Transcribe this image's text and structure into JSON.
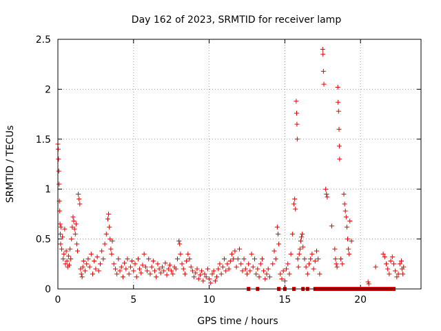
{
  "chart_data": {
    "type": "scatter",
    "title": "Day 162 of 2023, SRMTID for receiver lamp",
    "xlabel": "GPS time / hours",
    "ylabel": "SRMTID / TECUs",
    "xlim": [
      0,
      24
    ],
    "ylim": [
      0,
      2.5
    ],
    "xticks": [
      0,
      5,
      10,
      15,
      20
    ],
    "yticks": [
      0,
      0.5,
      1,
      1.5,
      2,
      2.5
    ],
    "xtick_labels": [
      "0",
      "5",
      "10",
      "15",
      "20"
    ],
    "ytick_labels": [
      "0",
      "0.5",
      "1",
      "1.5",
      "2",
      "2.5"
    ],
    "grid": true,
    "marker": "plus",
    "color": "#e00000",
    "series": [
      {
        "name": "lamp",
        "points": [
          [
            0.0,
            1.45
          ],
          [
            0.02,
            1.4
          ],
          [
            0.04,
            1.3
          ],
          [
            0.06,
            1.18
          ],
          [
            0.08,
            1.05
          ],
          [
            0.1,
            0.88
          ],
          [
            0.12,
            0.78
          ],
          [
            0.14,
            0.65
          ],
          [
            0.16,
            0.55
          ],
          [
            0.18,
            0.45
          ],
          [
            0.2,
            0.62
          ],
          [
            0.25,
            0.4
          ],
          [
            0.3,
            0.52
          ],
          [
            0.35,
            0.3
          ],
          [
            0.4,
            0.35
          ],
          [
            0.45,
            0.6
          ],
          [
            0.5,
            0.25
          ],
          [
            0.55,
            0.38
          ],
          [
            0.6,
            0.28
          ],
          [
            0.65,
            0.22
          ],
          [
            0.7,
            0.33
          ],
          [
            0.75,
            0.24
          ],
          [
            0.8,
            0.4
          ],
          [
            0.85,
            0.3
          ],
          [
            0.9,
            0.5
          ],
          [
            0.95,
            0.62
          ],
          [
            1.0,
            0.72
          ],
          [
            1.05,
            0.68
          ],
          [
            1.1,
            0.6
          ],
          [
            1.15,
            0.55
          ],
          [
            1.2,
            0.65
          ],
          [
            1.25,
            0.45
          ],
          [
            1.3,
            0.38
          ],
          [
            1.35,
            0.95
          ],
          [
            1.4,
            0.9
          ],
          [
            1.45,
            0.85
          ],
          [
            1.5,
            0.2
          ],
          [
            1.55,
            0.15
          ],
          [
            1.6,
            0.12
          ],
          [
            1.65,
            0.22
          ],
          [
            1.7,
            0.28
          ],
          [
            1.8,
            0.18
          ],
          [
            1.9,
            0.25
          ],
          [
            2.0,
            0.3
          ],
          [
            2.1,
            0.22
          ],
          [
            2.2,
            0.35
          ],
          [
            2.3,
            0.15
          ],
          [
            2.4,
            0.28
          ],
          [
            2.5,
            0.2
          ],
          [
            2.6,
            0.32
          ],
          [
            2.7,
            0.18
          ],
          [
            2.8,
            0.25
          ],
          [
            2.9,
            0.38
          ],
          [
            3.0,
            0.3
          ],
          [
            3.1,
            0.45
          ],
          [
            3.2,
            0.55
          ],
          [
            3.3,
            0.7
          ],
          [
            3.35,
            0.75
          ],
          [
            3.4,
            0.62
          ],
          [
            3.45,
            0.5
          ],
          [
            3.5,
            0.4
          ],
          [
            3.55,
            0.35
          ],
          [
            3.6,
            0.48
          ],
          [
            3.7,
            0.25
          ],
          [
            3.8,
            0.2
          ],
          [
            3.9,
            0.15
          ],
          [
            4.0,
            0.3
          ],
          [
            4.1,
            0.18
          ],
          [
            4.2,
            0.22
          ],
          [
            4.3,
            0.12
          ],
          [
            4.4,
            0.26
          ],
          [
            4.5,
            0.2
          ],
          [
            4.6,
            0.3
          ],
          [
            4.7,
            0.15
          ],
          [
            4.8,
            0.22
          ],
          [
            4.9,
            0.28
          ],
          [
            5.0,
            0.18
          ],
          [
            5.1,
            0.25
          ],
          [
            5.2,
            0.12
          ],
          [
            5.3,
            0.3
          ],
          [
            5.4,
            0.2
          ],
          [
            5.5,
            0.16
          ],
          [
            5.6,
            0.24
          ],
          [
            5.7,
            0.35
          ],
          [
            5.8,
            0.22
          ],
          [
            5.9,
            0.18
          ],
          [
            6.0,
            0.3
          ],
          [
            6.1,
            0.15
          ],
          [
            6.2,
            0.22
          ],
          [
            6.3,
            0.28
          ],
          [
            6.4,
            0.18
          ],
          [
            6.5,
            0.12
          ],
          [
            6.6,
            0.25
          ],
          [
            6.7,
            0.2
          ],
          [
            6.8,
            0.16
          ],
          [
            6.9,
            0.22
          ],
          [
            7.0,
            0.18
          ],
          [
            7.1,
            0.26
          ],
          [
            7.2,
            0.14
          ],
          [
            7.3,
            0.2
          ],
          [
            7.4,
            0.24
          ],
          [
            7.5,
            0.18
          ],
          [
            7.6,
            0.15
          ],
          [
            7.7,
            0.22
          ],
          [
            7.8,
            0.2
          ],
          [
            7.9,
            0.3
          ],
          [
            8.0,
            0.48
          ],
          [
            8.05,
            0.45
          ],
          [
            8.1,
            0.35
          ],
          [
            8.2,
            0.25
          ],
          [
            8.3,
            0.2
          ],
          [
            8.4,
            0.15
          ],
          [
            8.5,
            0.28
          ],
          [
            8.6,
            0.35
          ],
          [
            8.7,
            0.3
          ],
          [
            8.8,
            0.22
          ],
          [
            8.9,
            0.18
          ],
          [
            9.0,
            0.12
          ],
          [
            9.1,
            0.16
          ],
          [
            9.2,
            0.2
          ],
          [
            9.3,
            0.1
          ],
          [
            9.4,
            0.14
          ],
          [
            9.5,
            0.18
          ],
          [
            9.6,
            0.08
          ],
          [
            9.7,
            0.15
          ],
          [
            9.8,
            0.12
          ],
          [
            9.9,
            0.2
          ],
          [
            10.0,
            0.1
          ],
          [
            10.1,
            0.06
          ],
          [
            10.2,
            0.15
          ],
          [
            10.3,
            0.18
          ],
          [
            10.4,
            0.08
          ],
          [
            10.5,
            0.12
          ],
          [
            10.6,
            0.2
          ],
          [
            10.7,
            0.25
          ],
          [
            10.8,
            0.15
          ],
          [
            10.9,
            0.22
          ],
          [
            11.0,
            0.3
          ],
          [
            11.1,
            0.18
          ],
          [
            11.2,
            0.25
          ],
          [
            11.3,
            0.2
          ],
          [
            11.4,
            0.28
          ],
          [
            11.5,
            0.35
          ],
          [
            11.6,
            0.3
          ],
          [
            11.7,
            0.38
          ],
          [
            11.8,
            0.22
          ],
          [
            11.9,
            0.3
          ],
          [
            12.0,
            0.4
          ],
          [
            12.1,
            0.25
          ],
          [
            12.2,
            0.18
          ],
          [
            12.3,
            0.3
          ],
          [
            12.4,
            0.2
          ],
          [
            12.5,
            0.15
          ],
          [
            12.6,
            0.25
          ],
          [
            12.7,
            0.18
          ],
          [
            12.8,
            0.35
          ],
          [
            12.9,
            0.22
          ],
          [
            13.0,
            0.3
          ],
          [
            13.1,
            0.15
          ],
          [
            13.2,
            0.2
          ],
          [
            13.3,
            0.12
          ],
          [
            13.4,
            0.25
          ],
          [
            13.5,
            0.3
          ],
          [
            13.6,
            0.18
          ],
          [
            13.7,
            0.1
          ],
          [
            13.8,
            0.15
          ],
          [
            13.9,
            0.2
          ],
          [
            14.0,
            0.12
          ],
          [
            14.2,
            0.25
          ],
          [
            14.3,
            0.38
          ],
          [
            14.4,
            0.3
          ],
          [
            14.5,
            0.62
          ],
          [
            14.55,
            0.55
          ],
          [
            14.6,
            0.45
          ],
          [
            14.7,
            0.15
          ],
          [
            14.8,
            0.1
          ],
          [
            14.9,
            0.18
          ],
          [
            15.0,
            0.08
          ],
          [
            15.1,
            0.2
          ],
          [
            15.2,
            0.25
          ],
          [
            15.3,
            0.15
          ],
          [
            15.4,
            0.35
          ],
          [
            15.5,
            0.55
          ],
          [
            15.6,
            0.85
          ],
          [
            15.65,
            0.9
          ],
          [
            15.7,
            0.8
          ],
          [
            15.75,
            1.88
          ],
          [
            15.78,
            1.76
          ],
          [
            15.8,
            1.65
          ],
          [
            15.82,
            1.5
          ],
          [
            15.85,
            0.3
          ],
          [
            15.9,
            0.22
          ],
          [
            15.95,
            0.35
          ],
          [
            16.0,
            0.4
          ],
          [
            16.05,
            0.48
          ],
          [
            16.1,
            0.52
          ],
          [
            16.15,
            0.55
          ],
          [
            16.2,
            0.42
          ],
          [
            16.3,
            0.3
          ],
          [
            16.4,
            0.22
          ],
          [
            16.5,
            0.15
          ],
          [
            16.6,
            0.25
          ],
          [
            16.7,
            0.3
          ],
          [
            16.8,
            0.35
          ],
          [
            16.9,
            0.2
          ],
          [
            17.0,
            0.28
          ],
          [
            17.1,
            0.38
          ],
          [
            17.2,
            0.3
          ],
          [
            17.3,
            0.15
          ],
          [
            17.5,
            2.4
          ],
          [
            17.52,
            2.35
          ],
          [
            17.55,
            2.18
          ],
          [
            17.58,
            2.05
          ],
          [
            17.7,
            1.0
          ],
          [
            17.75,
            0.95
          ],
          [
            17.8,
            0.92
          ],
          [
            18.1,
            0.63
          ],
          [
            18.3,
            0.4
          ],
          [
            18.35,
            0.3
          ],
          [
            18.4,
            0.25
          ],
          [
            18.45,
            0.22
          ],
          [
            18.5,
            2.02
          ],
          [
            18.52,
            1.87
          ],
          [
            18.55,
            1.78
          ],
          [
            18.58,
            1.6
          ],
          [
            18.6,
            1.43
          ],
          [
            18.62,
            1.3
          ],
          [
            18.7,
            0.3
          ],
          [
            18.8,
            0.25
          ],
          [
            18.9,
            0.95
          ],
          [
            18.95,
            0.85
          ],
          [
            19.0,
            0.78
          ],
          [
            19.05,
            0.72
          ],
          [
            19.1,
            0.62
          ],
          [
            19.15,
            0.5
          ],
          [
            19.2,
            0.4
          ],
          [
            19.25,
            0.35
          ],
          [
            19.3,
            0.68
          ],
          [
            19.4,
            0.48
          ],
          [
            20.5,
            0.07
          ],
          [
            20.55,
            0.05
          ],
          [
            21.0,
            0.22
          ],
          [
            21.5,
            0.35
          ],
          [
            21.6,
            0.32
          ],
          [
            21.7,
            0.25
          ],
          [
            21.8,
            0.2
          ],
          [
            21.9,
            0.15
          ],
          [
            22.0,
            0.28
          ],
          [
            22.1,
            0.32
          ],
          [
            22.2,
            0.25
          ],
          [
            22.3,
            0.18
          ],
          [
            22.4,
            0.12
          ],
          [
            22.5,
            0.15
          ],
          [
            22.6,
            0.25
          ],
          [
            22.7,
            0.28
          ],
          [
            22.75,
            0.2
          ],
          [
            22.8,
            0.15
          ],
          [
            22.85,
            0.22
          ]
        ]
      }
    ],
    "zero_marks": [
      [
        12.6,
        0
      ],
      [
        13.2,
        0
      ],
      [
        14.6,
        0
      ],
      [
        15.0,
        0
      ],
      [
        15.6,
        0
      ],
      [
        16.2,
        0
      ],
      [
        16.5,
        0
      ],
      [
        17.0,
        0
      ],
      [
        17.2,
        0
      ],
      [
        17.4,
        0
      ],
      [
        17.6,
        0
      ],
      [
        17.8,
        0
      ],
      [
        18.0,
        0
      ],
      [
        18.2,
        0
      ],
      [
        18.4,
        0
      ],
      [
        18.6,
        0
      ],
      [
        18.8,
        0
      ],
      [
        19.0,
        0
      ],
      [
        19.2,
        0
      ],
      [
        19.4,
        0
      ],
      [
        19.6,
        0
      ],
      [
        19.8,
        0
      ],
      [
        20.0,
        0
      ],
      [
        20.2,
        0
      ],
      [
        20.4,
        0
      ],
      [
        20.6,
        0
      ],
      [
        20.8,
        0
      ],
      [
        21.0,
        0
      ],
      [
        21.2,
        0
      ],
      [
        21.4,
        0
      ],
      [
        21.6,
        0
      ],
      [
        21.8,
        0
      ],
      [
        22.0,
        0
      ],
      [
        22.2,
        0
      ]
    ]
  }
}
